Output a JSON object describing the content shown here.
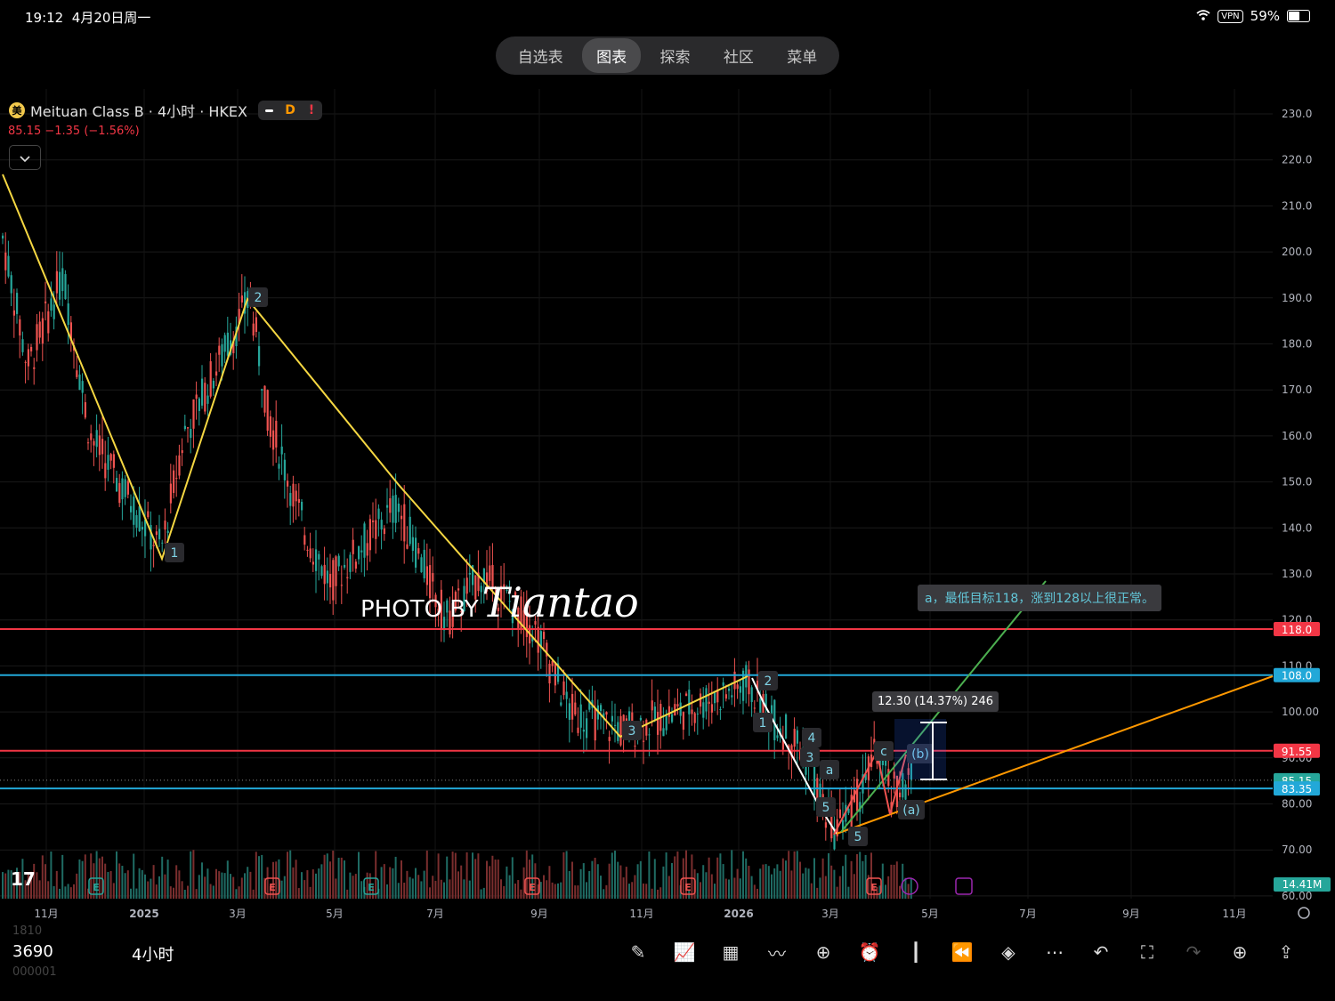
{
  "status_bar": {
    "time": "19:12",
    "date": "4月20日周一",
    "vpn": "VPN",
    "battery": "59%",
    "battery_level": 0.59
  },
  "nav_tabs": [
    {
      "label": "自选表",
      "active": false
    },
    {
      "label": "图表",
      "active": true
    },
    {
      "label": "探索",
      "active": false
    },
    {
      "label": "社区",
      "active": false
    },
    {
      "label": "菜单",
      "active": false
    }
  ],
  "symbol": {
    "name": "Meituan Class B · 4小时 · HKEX",
    "icon": "美",
    "badges": [
      "D",
      "!"
    ],
    "last": "85.15",
    "change": "−1.35 (−1.56%)"
  },
  "watermark": {
    "text": "PHOTO BY",
    "signature": "Tiantao"
  },
  "annotation": "a，最低目标118，涨到128以上很正常。",
  "measure_label": "12.30 (14.37%) 246",
  "chart_data": {
    "type": "candlestick",
    "y_ticks": [
      "230.0",
      "220.0",
      "210.0",
      "200.0",
      "190.0",
      "180.0",
      "170.0",
      "160.0",
      "150.0",
      "140.0",
      "130.0",
      "120.0",
      "110.0",
      "100.00",
      "90.00",
      "80.00",
      "70.00",
      "60.00"
    ],
    "y_range": [
      60,
      230
    ],
    "x_ticks": [
      "11月",
      "2025",
      "3月",
      "5月",
      "7月",
      "9月",
      "11月",
      "2026",
      "3月",
      "5月",
      "7月",
      "9月",
      "11月"
    ],
    "price_labels": [
      {
        "value": 118.0,
        "label": "118.0",
        "color": "#f23645"
      },
      {
        "value": 108.0,
        "label": "108.0",
        "color": "#22a8d8"
      },
      {
        "value": 91.55,
        "label": "91.55",
        "color": "#f23645"
      },
      {
        "value": 85.15,
        "label": "85.15",
        "color": "#26a69a"
      },
      {
        "value": 83.35,
        "label": "83.35",
        "color": "#22a8d8"
      }
    ],
    "volume_label": "14.41M",
    "wave_labels": [
      "1",
      "2",
      "3",
      "1",
      "2",
      "3",
      "4",
      "5",
      "a",
      "5",
      "c",
      "(b)",
      "(a)"
    ],
    "wave_price_path": [
      {
        "date": "2024-10",
        "price": 217
      },
      {
        "date": "2025-01",
        "price": 133
      },
      {
        "date": "2025-03",
        "price": 190
      },
      {
        "date": "2025-10",
        "price": 94
      },
      {
        "date": "2025-12",
        "price": 108
      }
    ]
  },
  "bottom": {
    "symbol_code": "3690",
    "ghost_above": "1810",
    "ghost_below": "000001",
    "interval": "4小时"
  },
  "tools": [
    "pen-icon",
    "indicators-icon",
    "layout-grid-icon",
    "drawing-trend-icon",
    "add-icon",
    "alert-clock-icon",
    "candles-type-icon",
    "replay-icon",
    "layers-icon",
    "more-icon",
    "undo-icon",
    "fullscreen-icon",
    "redo-icon",
    "add-indicator-icon",
    "share-icon"
  ]
}
